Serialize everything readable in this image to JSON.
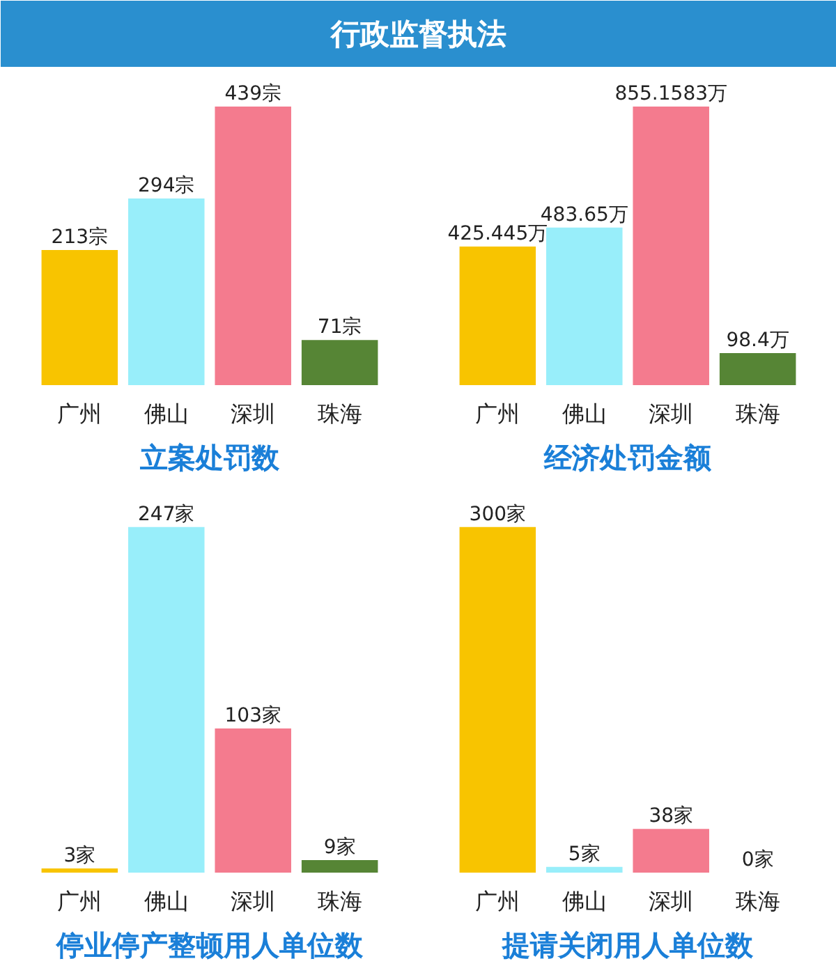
{
  "chart_data": [
    {
      "type": "other",
      "title": "行政监督执法"
    },
    {
      "type": "bar",
      "title": "立案处罚数",
      "categories": [
        "广州",
        "佛山",
        "深圳",
        "珠海"
      ],
      "values": [
        213,
        294,
        439,
        71
      ],
      "value_labels": [
        "213宗",
        "294宗",
        "439宗",
        "71宗"
      ],
      "colors": [
        "#f8c400",
        "#98eefa",
        "#f47b8e",
        "#568535"
      ]
    },
    {
      "type": "bar",
      "title": "经济处罚金额",
      "categories": [
        "广州",
        "佛山",
        "深圳",
        "珠海"
      ],
      "values": [
        425.445,
        483.65,
        855.1583,
        98.4
      ],
      "value_labels": [
        "425.445万",
        "483.65万",
        "855.1583万",
        "98.4万"
      ],
      "colors": [
        "#f8c400",
        "#98eefa",
        "#f47b8e",
        "#568535"
      ]
    },
    {
      "type": "bar",
      "title": "停业停产整顿用人单位数",
      "categories": [
        "广州",
        "佛山",
        "深圳",
        "珠海"
      ],
      "values": [
        3,
        247,
        103,
        9
      ],
      "value_labels": [
        "3家",
        "247家",
        "103家",
        "9家"
      ],
      "colors": [
        "#f8c400",
        "#98eefa",
        "#f47b8e",
        "#568535"
      ]
    },
    {
      "type": "bar",
      "title": "提请关闭用人单位数",
      "categories": [
        "广州",
        "佛山",
        "深圳",
        "珠海"
      ],
      "values": [
        300,
        5,
        38,
        0
      ],
      "value_labels": [
        "300家",
        "5家",
        "38家",
        "0家"
      ],
      "colors": [
        "#f8c400",
        "#98eefa",
        "#f47b8e",
        "#568535"
      ]
    }
  ]
}
